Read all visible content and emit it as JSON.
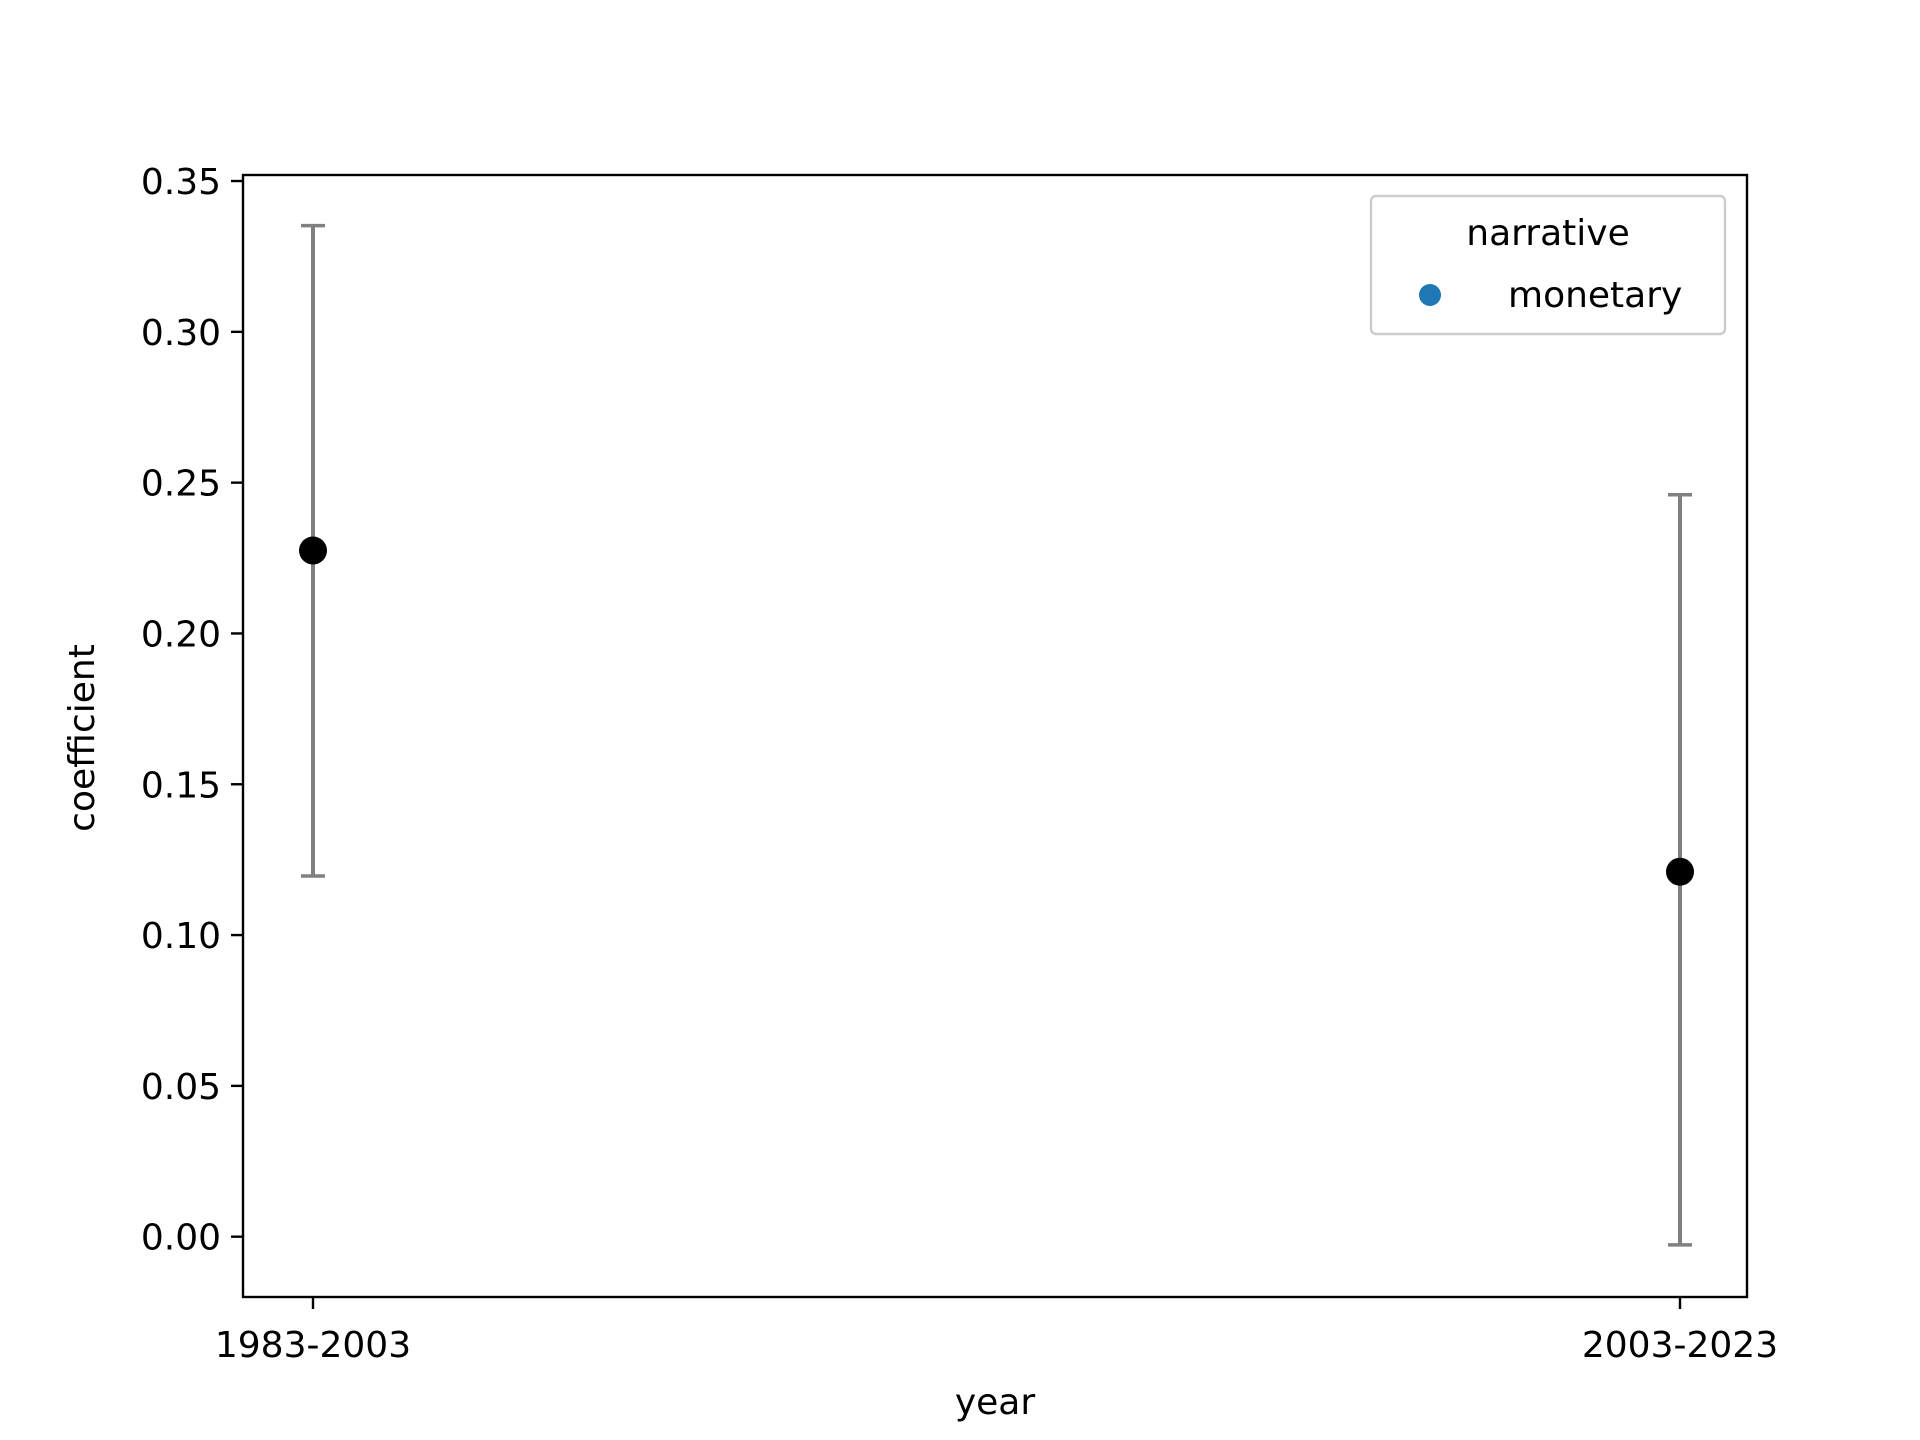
{
  "chart_data": {
    "type": "scatter",
    "title": "",
    "xlabel": "year",
    "ylabel": "coefficient",
    "categories": [
      "1983-2003",
      "2003-2023"
    ],
    "points": [
      {
        "x": "1983-2003",
        "y": 0.2275,
        "err_low": 0.1196,
        "err_high": 0.3352
      },
      {
        "x": "2003-2023",
        "y": 0.121,
        "err_low": -0.0027,
        "err_high": 0.246
      }
    ],
    "ylim": [
      -0.02,
      0.352
    ],
    "yticks": [
      "0.00",
      "0.05",
      "0.10",
      "0.15",
      "0.20",
      "0.25",
      "0.30",
      "0.35"
    ],
    "grid": false,
    "legend": {
      "title": "narrative",
      "placement": "top-right",
      "entries": [
        {
          "label": "monetary",
          "color": "#1f77b4"
        }
      ]
    },
    "colors": {
      "point": "#000000",
      "errorbar": "#808080",
      "legend_marker": "#1f77b4"
    }
  }
}
